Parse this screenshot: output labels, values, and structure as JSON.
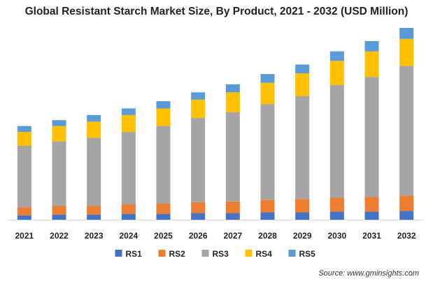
{
  "chart_data": {
    "type": "bar",
    "stacked": true,
    "title": "Global Resistant Starch Market Size, By Product, 2021 - 2032 (USD Million)",
    "categories": [
      "2021",
      "2022",
      "2023",
      "2024",
      "2025",
      "2026",
      "2027",
      "2028",
      "2029",
      "2030",
      "2031",
      "2032"
    ],
    "series": [
      {
        "name": "RS1",
        "color": "#4472c4",
        "values": [
          6,
          7,
          7,
          8,
          8,
          9,
          9,
          10,
          10,
          11,
          11,
          12
        ]
      },
      {
        "name": "RS2",
        "color": "#ed7d31",
        "values": [
          11,
          12,
          12,
          13,
          14,
          15,
          16,
          17,
          18,
          19,
          20,
          21
        ]
      },
      {
        "name": "RS3",
        "color": "#a5a5a5",
        "values": [
          84,
          88,
          93,
          99,
          106,
          115,
          122,
          131,
          141,
          154,
          164,
          177
        ]
      },
      {
        "name": "RS4",
        "color": "#ffc000",
        "values": [
          19,
          21,
          22,
          23,
          24,
          25,
          27,
          29,
          31,
          33,
          35,
          37
        ]
      },
      {
        "name": "RS5",
        "color": "#5b9bd5",
        "values": [
          8,
          8,
          9,
          9,
          10,
          10,
          11,
          12,
          12,
          13,
          14,
          15
        ]
      }
    ],
    "legend": "bottom",
    "grid": false,
    "xlabel": "",
    "ylabel": "",
    "ylim": [
      0,
      262
    ]
  },
  "source_text": "Source: www.gminsights.com"
}
